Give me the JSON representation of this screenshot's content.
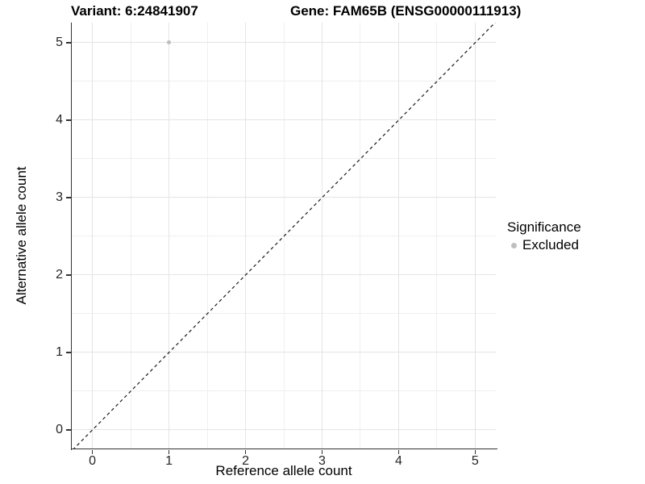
{
  "chart_data": {
    "type": "scatter",
    "title_left": "Variant: 6:24841907",
    "title_right": "Gene: FAM65B (ENSG00000111913)",
    "xlabel": "Reference allele count",
    "ylabel": "Alternative allele count",
    "x_ticks": [
      0,
      1,
      2,
      3,
      4,
      5
    ],
    "y_ticks": [
      0,
      1,
      2,
      3,
      4,
      5
    ],
    "xlim": [
      -0.27,
      5.27
    ],
    "ylim": [
      -0.24,
      5.26
    ],
    "grid": {
      "major": true,
      "minor": true,
      "major_color": "#e4e4e4",
      "minor_color": "#efefef"
    },
    "identity_line": {
      "type": "y=x",
      "style": "dashed",
      "color": "#1a1a1a"
    },
    "series": [
      {
        "name": "Excluded",
        "color": "#bebebe",
        "points": [
          [
            1,
            5
          ]
        ]
      }
    ],
    "legend": {
      "title": "Significance",
      "position": "right",
      "entries": [
        {
          "label": "Excluded",
          "color": "#bebebe"
        }
      ]
    }
  },
  "colors": {
    "axis": "#333333",
    "tick_text": "#262626",
    "background": "#ffffff"
  }
}
